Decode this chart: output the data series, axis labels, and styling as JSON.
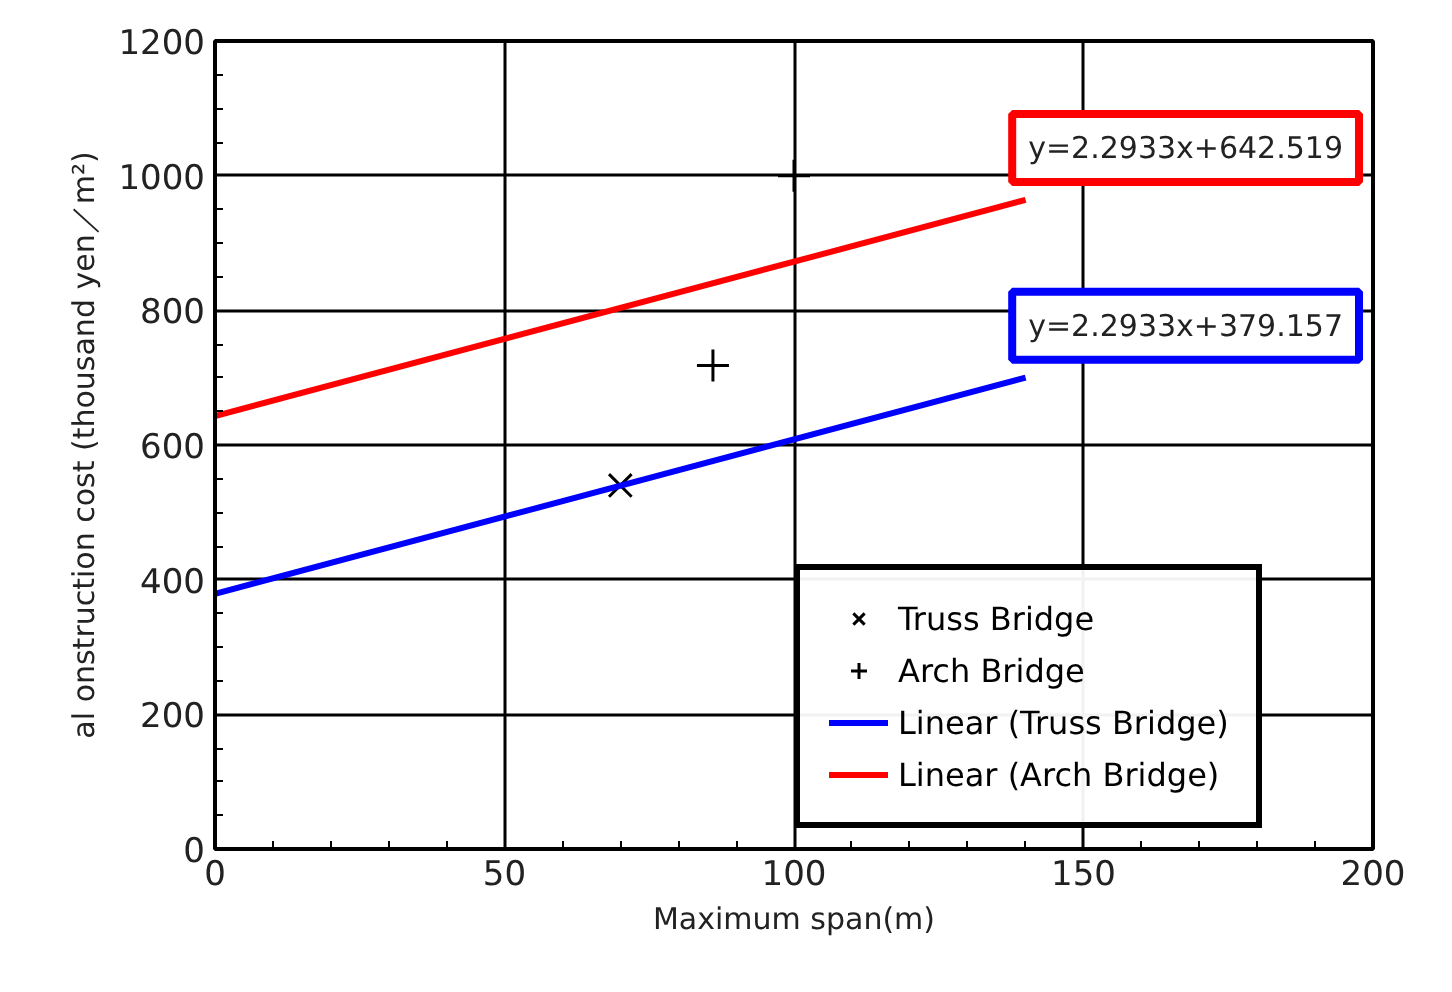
{
  "chart_data": {
    "type": "scatter",
    "xlabel": "Maximum span(m)",
    "ylabel": "al onstruction cost (thousand yen／m²)",
    "xlim": [
      0,
      200
    ],
    "xticks": [
      0,
      50,
      100,
      150,
      200
    ],
    "ylim": [
      0,
      1200
    ],
    "yticks": [
      0,
      200,
      400,
      600,
      800,
      1000,
      1200
    ],
    "grid": true,
    "legend": "bottom right",
    "series": [
      {
        "name": "Truss Bridge",
        "marker": "x",
        "color": "#000000",
        "x": [
          70
        ],
        "values": [
          540
        ]
      },
      {
        "name": "Arch Bridge",
        "marker": "cross",
        "color": "#000000",
        "x": [
          86,
          100
        ],
        "values": [
          718,
          1000
        ]
      },
      {
        "name": "Linear (Truss Bridge)",
        "type": "line",
        "color": "#0000ff",
        "x": [
          0,
          140
        ],
        "values": [
          379,
          700
        ]
      },
      {
        "name": "Linear (Arch Bridge)",
        "type": "line",
        "color": "#ff0000",
        "x": [
          0,
          140
        ],
        "values": [
          643,
          964
        ]
      }
    ],
    "annotations": [
      {
        "text": "y=2.2933x+642.519",
        "x": 140,
        "y": 964
      },
      {
        "text": "y=2.2933x+379.157",
        "x": 140,
        "y": 700
      }
    ]
  }
}
